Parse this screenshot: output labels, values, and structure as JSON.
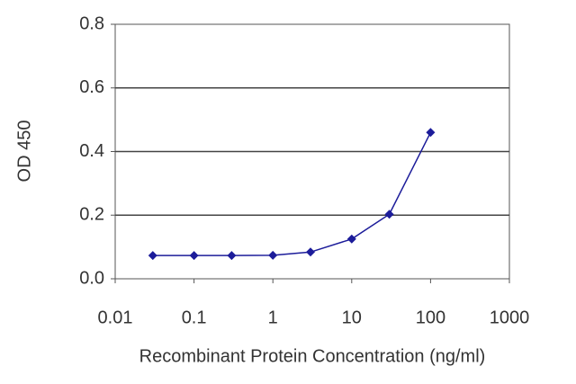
{
  "chart_data": {
    "type": "line",
    "x_label": "Recombinant Protein Concentration (ng/ml)",
    "y_label": "OD 450",
    "x": [
      0.03,
      0.1,
      0.3,
      1,
      3,
      10,
      30,
      100
    ],
    "series": [
      {
        "color": "#1c1c9a",
        "values": [
          0.073,
          0.073,
          0.073,
          0.074,
          0.084,
          0.125,
          0.203,
          0.46
        ]
      }
    ],
    "xscale": "log",
    "xlim": [
      0.01,
      1000
    ],
    "xticks": [
      0.01,
      0.1,
      1,
      10,
      100,
      1000
    ],
    "ylim": [
      0,
      0.8
    ],
    "yticks": [
      {
        "value": 0,
        "label": "0.0"
      },
      {
        "value": 0.2,
        "label": "0.2"
      },
      {
        "value": 0.4,
        "label": "0.4"
      },
      {
        "value": 0.6,
        "label": "0.6"
      },
      {
        "value": 0.8,
        "label": "0.8"
      }
    ],
    "grid": true
  }
}
